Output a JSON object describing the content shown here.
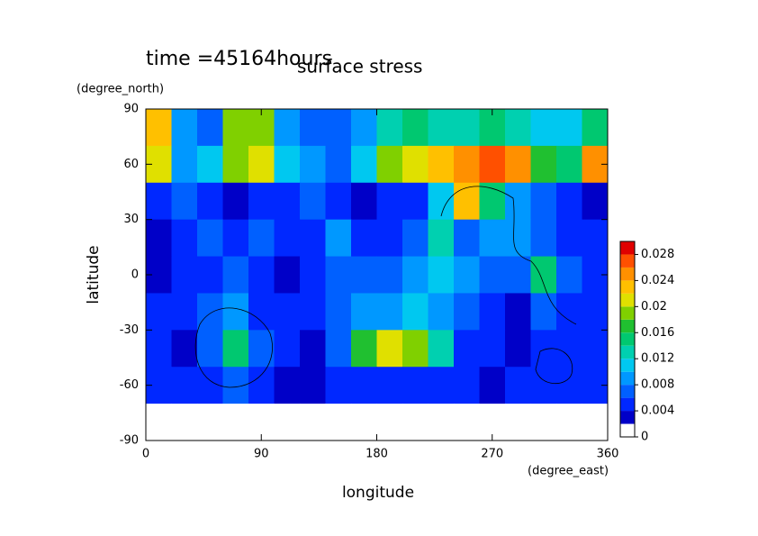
{
  "chart_data": {
    "type": "contour",
    "title": "surface stress",
    "subtitle": "time =45164hours",
    "x_label": "longitude",
    "x_unit": "(degree_east)",
    "y_label": "latitude",
    "y_unit": "(degree_north)",
    "x": [
      10,
      30,
      50,
      70,
      90,
      110,
      130,
      150,
      170,
      190,
      210,
      230,
      250,
      270,
      290,
      310,
      330,
      350
    ],
    "y": [
      80,
      60,
      40,
      20,
      0,
      -20,
      -40,
      -60,
      -80
    ],
    "z": [
      [
        0.022,
        0.008,
        0.006,
        0.018,
        0.018,
        0.008,
        0.006,
        0.006,
        0.008,
        0.012,
        0.014,
        0.012,
        0.012,
        0.014,
        0.012,
        0.01,
        0.01,
        0.014
      ],
      [
        0.02,
        0.008,
        0.01,
        0.018,
        0.02,
        0.01,
        0.008,
        0.006,
        0.01,
        0.018,
        0.02,
        0.022,
        0.024,
        0.026,
        0.024,
        0.016,
        0.014,
        0.024
      ],
      [
        0.004,
        0.006,
        0.004,
        0.002,
        0.004,
        0.004,
        0.006,
        0.004,
        0.002,
        0.004,
        0.004,
        0.01,
        0.022,
        0.014,
        0.008,
        0.006,
        0.004,
        0.002
      ],
      [
        0.002,
        0.004,
        0.006,
        0.004,
        0.006,
        0.004,
        0.004,
        0.008,
        0.004,
        0.004,
        0.006,
        0.012,
        0.006,
        0.008,
        0.008,
        0.006,
        0.004,
        0.004
      ],
      [
        0.002,
        0.004,
        0.004,
        0.006,
        0.004,
        0.002,
        0.004,
        0.006,
        0.006,
        0.006,
        0.008,
        0.01,
        0.008,
        0.006,
        0.006,
        0.014,
        0.006,
        0.004
      ],
      [
        0.004,
        0.004,
        0.006,
        0.008,
        0.004,
        0.004,
        0.004,
        0.006,
        0.008,
        0.008,
        0.01,
        0.008,
        0.006,
        0.004,
        0.002,
        0.006,
        0.004,
        0.004
      ],
      [
        0.004,
        0.002,
        0.006,
        0.014,
        0.006,
        0.004,
        0.002,
        0.006,
        0.016,
        0.02,
        0.018,
        0.012,
        0.004,
        0.004,
        0.002,
        0.004,
        0.004,
        0.004
      ],
      [
        0.004,
        0.004,
        0.004,
        0.006,
        0.004,
        0.002,
        0.002,
        0.004,
        0.004,
        0.004,
        0.004,
        0.004,
        0.004,
        0.002,
        0.004,
        0.004,
        0.004,
        0.004
      ],
      [
        0,
        0,
        0,
        0,
        0,
        0,
        0,
        0,
        0,
        0,
        0,
        0,
        0,
        0,
        0,
        0,
        0,
        0
      ]
    ],
    "xlim": [
      0,
      360
    ],
    "xticks": [
      0,
      90,
      180,
      270,
      360
    ],
    "ylim": [
      -90,
      90
    ],
    "yticks": [
      -90,
      -60,
      -30,
      0,
      30,
      60,
      90
    ],
    "levels": [
      0,
      0.002,
      0.004,
      0.006,
      0.008,
      0.01,
      0.012,
      0.014,
      0.016,
      0.018,
      0.02,
      0.022,
      0.024,
      0.026,
      0.028,
      0.03
    ],
    "colors": [
      "#ffffff",
      "#0000c8",
      "#0028ff",
      "#0060ff",
      "#0098ff",
      "#00c8f0",
      "#00d0b0",
      "#00c870",
      "#20c030",
      "#80d000",
      "#e0e000",
      "#ffc000",
      "#ff9000",
      "#ff5000",
      "#e00000"
    ],
    "clim": [
      0,
      0.03
    ],
    "cticks": [
      0,
      0.004,
      0.008,
      0.012,
      0.016,
      0.02,
      0.024,
      0.028
    ]
  }
}
